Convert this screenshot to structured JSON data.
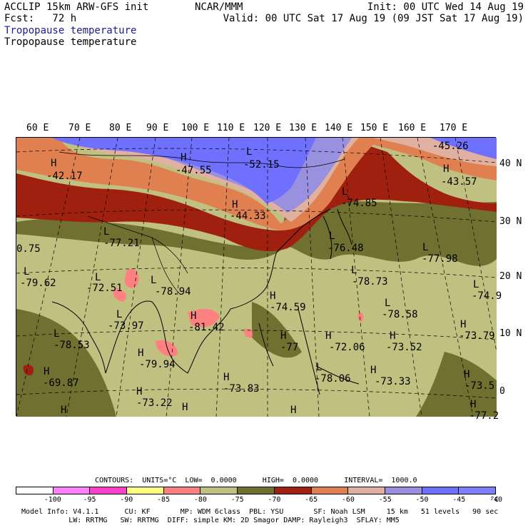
{
  "header": {
    "left_line1": "ACCLIP 15km ARW-GFS init",
    "left_line2": "Fcst:   72 h",
    "center": "NCAR/MMM",
    "init": "Init: 00 UTC Wed 14 Aug 19",
    "valid": "Valid: 00 UTC Sat 17 Aug 19 (09 JST Sat 17 Aug 19)",
    "field_blue": "Tropopause temperature",
    "field_black": "Tropopause temperature"
  },
  "lon_labels": [
    "60 E",
    "70 E",
    "80 E",
    "90 E",
    "100 E",
    "110 E",
    "120 E",
    "130 E",
    "140 E",
    "150 E",
    "160 E",
    "170 E"
  ],
  "lat_labels": [
    "40 N",
    "30 N",
    "20 N",
    "10 N",
    "0"
  ],
  "map_values": [
    "-42.17",
    "-47.55",
    "-52.15",
    "-45.26",
    "-43.57",
    "-44.33",
    "-74.85",
    "-77.21",
    "-76.48",
    "-77.98",
    "0.75",
    "-79.62",
    "-72.51",
    "-78.94",
    "-78.73",
    "-74.59",
    "-78.58",
    "-74.9",
    "-73.97",
    "-81.42",
    "-73.79",
    "-78.53",
    "-79.94",
    "-77",
    "-72.06",
    "-73.52",
    "-69.87",
    "-73.83",
    "-78.06",
    "-73.33",
    "-73.5",
    "-73.22",
    "-77.2"
  ],
  "map_marks": [
    "H",
    "L"
  ],
  "contours_line": "CONTOURS:  UNITS=°C  LOW=  0.0000      HIGH=  0.0000      INTERVAL=  1000.0",
  "legend": {
    "colors": [
      "#ffffff",
      "#ff80ff",
      "#ff40c8",
      "#ffff80",
      "#ff8080",
      "#c0c080",
      "#707030",
      "#a02010",
      "#e08050",
      "#e0b0a0",
      "#9a90e0",
      "#7070ff",
      "#8080ff"
    ],
    "ticks": [
      "-100",
      "-95",
      "-90",
      "-85",
      "-80",
      "-75",
      "-70",
      "-65",
      "-60",
      "-55",
      "-50",
      "-45",
      "-40",
      "°C"
    ]
  },
  "footer": {
    "line1": "Model Info: V4.1.1      CU: KF       MP: WDM 6class  PBL: YSU       SF: Noah LSM     15 km   51 levels   90 sec",
    "line2": "           LW: RRTMG   SW: RRTMG  DIFF: simple KM: 2D Smagor DAMP: Rayleigh3  SFLAY: MM5"
  }
}
